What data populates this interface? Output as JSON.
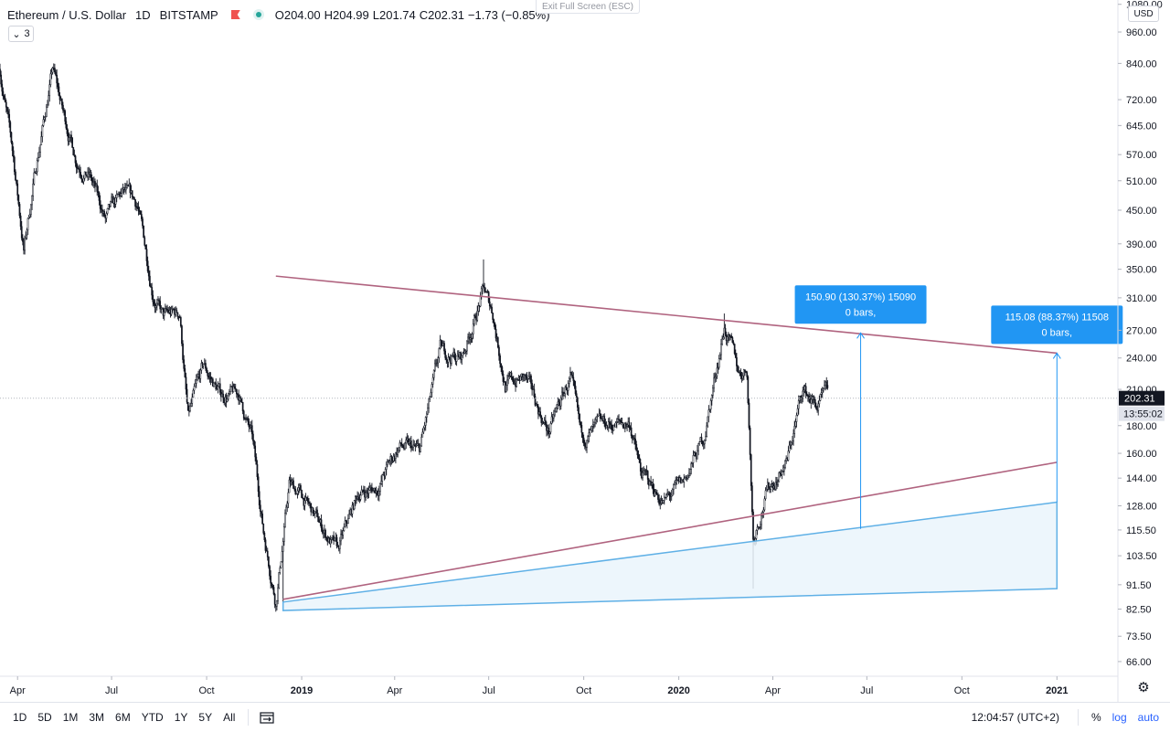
{
  "header": {
    "symbol": "Ethereum / U.S. Dollar",
    "interval": "1D",
    "exchange": "BITSTAMP",
    "open_label": "O",
    "open": "204.00",
    "high_label": "H",
    "high": "204.99",
    "low_label": "L",
    "low": "201.74",
    "close_label": "C",
    "close": "202.31",
    "change": "−1.73 (−0.85%)",
    "collapse_label": "3",
    "exit_fullscreen": "Exit Full Screen (ESC)"
  },
  "price_axis": {
    "currency": "USD",
    "ticks": [
      "1080.00",
      "960.00",
      "840.00",
      "720.00",
      "645.00",
      "570.00",
      "510.00",
      "450.00",
      "390.00",
      "350.00",
      "310.00",
      "270.00",
      "240.00",
      "210.00",
      "180.00",
      "160.00",
      "144.00",
      "128.00",
      "115.50",
      "103.50",
      "91.50",
      "82.50",
      "73.50",
      "66.00"
    ],
    "last_price": "202.31",
    "countdown": "13:55:02",
    "scale": "log"
  },
  "time_axis": {
    "ticks": [
      "Apr",
      "Jul",
      "Oct",
      "2019",
      "Apr",
      "Jul",
      "Oct",
      "2020",
      "Apr",
      "Jul",
      "Oct",
      "2021"
    ]
  },
  "colors": {
    "trendline": "#b0637f",
    "projection": "#5fb0e6",
    "measure_box": "#2196f3",
    "candle": "#131722",
    "price_label": "#131722"
  },
  "annotations": [
    {
      "line1": "150.90 (130.37%) 15090",
      "line2": "0 bars,"
    },
    {
      "line1": "115.08 (88.37%) 11508",
      "line2": "0 bars,"
    }
  ],
  "bottombar": {
    "ranges": [
      "1D",
      "5D",
      "1M",
      "3M",
      "6M",
      "YTD",
      "1Y",
      "5Y",
      "All"
    ],
    "time": "12:04:57 (UTC+2)",
    "percent": "%",
    "log": "log",
    "auto": "auto",
    "range_icon": "date-range-icon",
    "settings_icon": "gear-icon"
  },
  "chart_data": {
    "type": "candlestick",
    "title": "Ethereum / U.S. Dollar",
    "scale": "log",
    "ylim": [
      62,
      1100
    ],
    "x_range": [
      "2018-03-15",
      "2021-03-01"
    ],
    "path": [
      [
        "2018-03-15",
        820
      ],
      [
        "2018-03-28",
        560
      ],
      [
        "2018-04-07",
        380
      ],
      [
        "2018-04-20",
        560
      ],
      [
        "2018-05-05",
        820
      ],
      [
        "2018-05-15",
        680
      ],
      [
        "2018-05-28",
        560
      ],
      [
        "2018-06-10",
        520
      ],
      [
        "2018-06-25",
        430
      ],
      [
        "2018-07-12",
        480
      ],
      [
        "2018-07-26",
        460
      ],
      [
        "2018-08-10",
        320
      ],
      [
        "2018-08-20",
        285
      ],
      [
        "2018-09-05",
        290
      ],
      [
        "2018-09-13",
        185
      ],
      [
        "2018-09-28",
        230
      ],
      [
        "2018-10-15",
        205
      ],
      [
        "2018-11-01",
        205
      ],
      [
        "2018-11-14",
        170
      ],
      [
        "2018-11-25",
        115
      ],
      [
        "2018-12-07",
        86
      ],
      [
        "2018-12-20",
        140
      ],
      [
        "2018-12-30",
        135
      ],
      [
        "2019-01-10",
        125
      ],
      [
        "2019-02-05",
        105
      ],
      [
        "2019-02-25",
        135
      ],
      [
        "2019-03-15",
        138
      ],
      [
        "2019-04-05",
        165
      ],
      [
        "2019-04-25",
        160
      ],
      [
        "2019-05-15",
        245
      ],
      [
        "2019-06-05",
        240
      ],
      [
        "2019-06-26",
        320
      ],
      [
        "2019-07-05",
        290
      ],
      [
        "2019-07-17",
        215
      ],
      [
        "2019-08-05",
        220
      ],
      [
        "2019-08-28",
        175
      ],
      [
        "2019-09-18",
        220
      ],
      [
        "2019-09-28",
        170
      ],
      [
        "2019-10-25",
        180
      ],
      [
        "2019-11-15",
        182
      ],
      [
        "2019-11-25",
        147
      ],
      [
        "2019-12-18",
        130
      ],
      [
        "2020-01-05",
        140
      ],
      [
        "2020-01-25",
        170
      ],
      [
        "2020-02-14",
        275
      ],
      [
        "2020-02-28",
        225
      ],
      [
        "2020-03-07",
        230
      ],
      [
        "2020-03-13",
        112
      ],
      [
        "2020-03-25",
        135
      ],
      [
        "2020-04-15",
        155
      ],
      [
        "2020-04-30",
        210
      ],
      [
        "2020-05-14",
        195
      ],
      [
        "2020-05-24",
        205
      ]
    ],
    "events": [
      {
        "date": "2018-05-06",
        "high": 840
      },
      {
        "date": "2018-12-14",
        "low": 82
      },
      {
        "date": "2019-06-26",
        "high": 365
      },
      {
        "date": "2020-02-14",
        "high": 290
      },
      {
        "date": "2020-03-13",
        "low": 90
      }
    ],
    "trendlines": [
      {
        "name": "upper",
        "from": [
          "2018-12-07",
          340
        ],
        "to": [
          "2021-01-01",
          245
        ]
      },
      {
        "name": "lower",
        "from": [
          "2018-12-14",
          86
        ],
        "to": [
          "2021-01-01",
          154
        ]
      },
      {
        "name": "projection-top",
        "from": [
          "2018-12-14",
          85
        ],
        "to": [
          "2021-01-01",
          130
        ]
      },
      {
        "name": "projection-bottom",
        "from": [
          "2018-12-14",
          82
        ],
        "to": [
          "2021-01-01",
          90
        ]
      }
    ],
    "measures": [
      {
        "date": "2020-06-25",
        "from": 116,
        "to": 267,
        "label": "150.90 (130.37%) 15090"
      },
      {
        "date": "2021-01-01",
        "from": 130,
        "to": 245,
        "label": "115.08 (88.37%) 11508"
      }
    ]
  }
}
